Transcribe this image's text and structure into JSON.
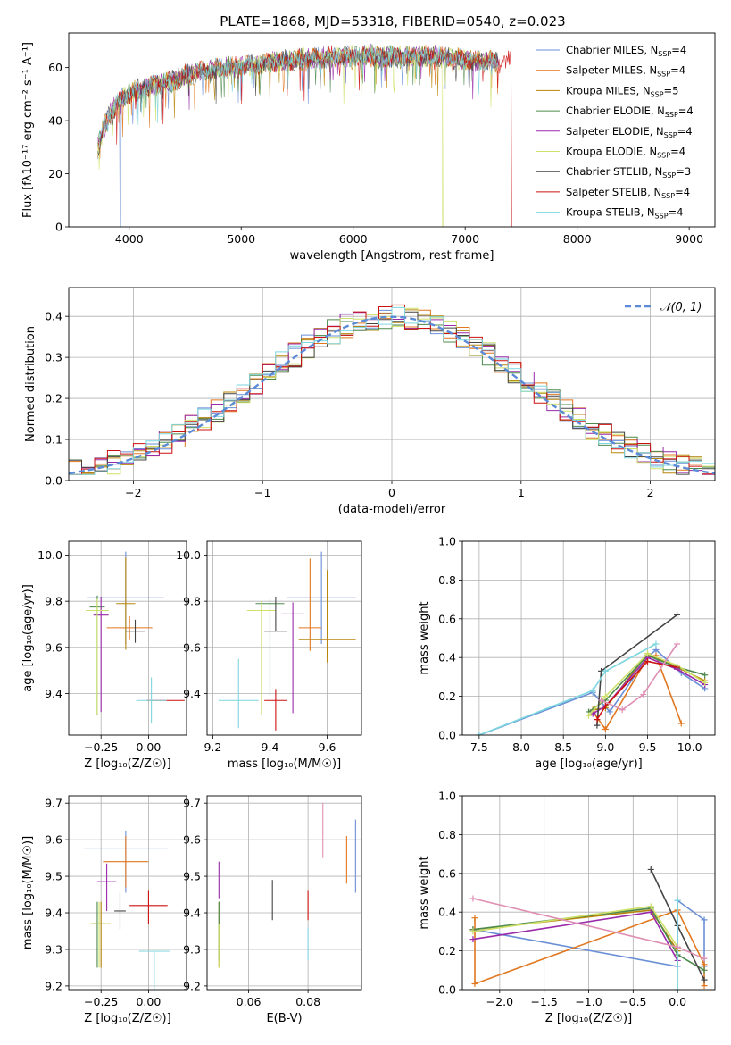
{
  "figure": {
    "title": "PLATE=1868, MJD=53318, FIBERID=0540, z=0.023"
  },
  "series": [
    {
      "name": "Chabrier MILES",
      "nssp": "4",
      "color": "#6a8fd6"
    },
    {
      "name": "Salpeter MILES",
      "nssp": "4",
      "color": "#e1771f"
    },
    {
      "name": "Kroupa MILES",
      "nssp": "5",
      "color": "#b8860b"
    },
    {
      "name": "Chabrier ELODIE",
      "nssp": "4",
      "color": "#4d8a4d"
    },
    {
      "name": "Salpeter ELODIE",
      "nssp": "4",
      "color": "#9a2aaa"
    },
    {
      "name": "Kroupa ELODIE",
      "nssp": "4",
      "color": "#cfe06a"
    },
    {
      "name": "Chabrier STELIB",
      "nssp": "3",
      "color": "#444444"
    },
    {
      "name": "Salpeter STELIB",
      "nssp": "4",
      "color": "#cc1111"
    },
    {
      "name": "Kroupa STELIB",
      "nssp": "4",
      "color": "#7ed6df"
    }
  ],
  "chart_data": [
    {
      "id": "spectrum",
      "type": "line",
      "xlabel": "wavelength [Angstrom, rest frame]",
      "ylabel": "Flux [fλ10⁻¹⁷ erg cm⁻² s⁻¹ A⁻¹]",
      "xlim": [
        3460,
        9230
      ],
      "ylim": [
        0,
        73
      ],
      "xticks": [
        4000,
        5000,
        6000,
        7000,
        8000,
        9000
      ],
      "yticks": [
        0,
        20,
        40,
        60
      ],
      "legend": "top-right",
      "continuum": {
        "x": [
          3720,
          3780,
          3850,
          3920,
          4000,
          4100,
          4200,
          4300,
          4400,
          4500,
          4700,
          4900,
          5100,
          5300,
          5500,
          5800,
          6100,
          6400,
          6700,
          7000,
          7300
        ],
        "y": [
          30,
          38,
          44,
          48,
          50,
          52,
          53,
          54,
          55,
          57,
          59,
          60,
          61,
          62,
          63,
          64,
          64.5,
          64,
          64.5,
          63,
          62
        ]
      },
      "dropouts": [
        {
          "series": "Chabrier MILES",
          "x": 3920
        },
        {
          "series": "Kroupa ELODIE",
          "x": 6800
        },
        {
          "series": "Salpeter STELIB",
          "x": 7420
        }
      ]
    },
    {
      "id": "residuals",
      "type": "line",
      "xlabel": "(data-model)/error",
      "ylabel": "Normed distribution",
      "xlim": [
        -2.5,
        2.5
      ],
      "ylim": [
        0,
        0.47
      ],
      "xticks": [
        -2,
        -1,
        0,
        1,
        2
      ],
      "yticks": [
        0.0,
        0.1,
        0.2,
        0.3,
        0.4
      ],
      "grid": true,
      "legend": "top-right",
      "reference": {
        "label": "𝒩(0, 1)",
        "mean": 0,
        "sigma": 1,
        "color": "#5b8ad6"
      }
    },
    {
      "id": "age-vs-Z",
      "type": "scatter",
      "xlabel": "Z [log₁₀(Z/Z☉)]",
      "ylabel": "age  [log₁₀(age/yr)]",
      "xlim": [
        -0.42,
        0.2
      ],
      "ylim": [
        9.22,
        10.06
      ],
      "xticks": [
        -0.25,
        0.0
      ],
      "yticks": [
        9.4,
        9.6,
        9.8,
        10.0
      ],
      "grid": true,
      "points": [
        {
          "series": "Chabrier MILES",
          "x": -0.12,
          "y": 9.815,
          "xerr": 0.2,
          "yerr_lo": 0.2,
          "yerr_hi": 0.2
        },
        {
          "series": "Salpeter MILES",
          "x": -0.1,
          "y": 9.685,
          "xerr": 0.12,
          "yerr_lo": 0.05,
          "yerr_hi": 0.05
        },
        {
          "series": "Kroupa MILES",
          "x": -0.12,
          "y": 9.79,
          "xerr": 0.05,
          "yerr_lo": 0.2,
          "yerr_hi": 0.2
        },
        {
          "series": "Chabrier ELODIE",
          "x": -0.27,
          "y": 9.775,
          "xerr": 0.04,
          "yerr_lo": 0.47,
          "yerr_hi": 0.05
        },
        {
          "series": "Salpeter ELODIE",
          "x": -0.25,
          "y": 9.74,
          "xerr": 0.04,
          "yerr_lo": 0.42,
          "yerr_hi": 0.08
        },
        {
          "series": "Kroupa ELODIE",
          "x": -0.27,
          "y": 9.76,
          "xerr": 0.06,
          "yerr_lo": 0.45,
          "yerr_hi": 0.05
        },
        {
          "series": "Chabrier STELIB",
          "x": -0.07,
          "y": 9.67,
          "xerr": 0.05,
          "yerr_lo": 0.05,
          "yerr_hi": 0.05
        },
        {
          "series": "Salpeter STELIB",
          "x": 0.09,
          "y": 9.37,
          "xerr": 0.1,
          "yerr_lo": 0.0,
          "yerr_hi": 0.0
        },
        {
          "series": "Kroupa STELIB",
          "x": 0.015,
          "y": 9.37,
          "xerr": 0.08,
          "yerr_lo": 0.1,
          "yerr_hi": 0.1
        }
      ]
    },
    {
      "id": "age-vs-mass",
      "type": "scatter",
      "xlabel": "mass [log₁₀(M/M☉)]",
      "ylabel": "",
      "xlim": [
        9.18,
        9.72
      ],
      "ylim": [
        9.22,
        10.06
      ],
      "xticks": [
        9.2,
        9.4,
        9.6
      ],
      "yticks": [
        9.4,
        9.6,
        9.8,
        10.0
      ],
      "grid": true,
      "points": [
        {
          "series": "Chabrier MILES",
          "x": 9.58,
          "y": 9.815,
          "xerr": 0.12,
          "yerr_lo": 0.2,
          "yerr_hi": 0.2
        },
        {
          "series": "Salpeter MILES",
          "x": 9.54,
          "y": 9.685,
          "xerr": 0.04,
          "yerr_lo": 0.1,
          "yerr_hi": 0.3
        },
        {
          "series": "Kroupa MILES",
          "x": 9.6,
          "y": 9.635,
          "xerr": 0.1,
          "yerr_lo": 0.1,
          "yerr_hi": 0.3
        },
        {
          "series": "Chabrier ELODIE",
          "x": 9.4,
          "y": 9.79,
          "xerr": 0.05,
          "yerr_lo": 0.4,
          "yerr_hi": 0.02
        },
        {
          "series": "Salpeter ELODIE",
          "x": 9.48,
          "y": 9.745,
          "xerr": 0.04,
          "yerr_lo": 0.43,
          "yerr_hi": 0.05
        },
        {
          "series": "Kroupa ELODIE",
          "x": 9.37,
          "y": 9.76,
          "xerr": 0.05,
          "yerr_lo": 0.45,
          "yerr_hi": 0.04
        },
        {
          "series": "Chabrier STELIB",
          "x": 9.42,
          "y": 9.67,
          "xerr": 0.04,
          "yerr_lo": 0.0,
          "yerr_hi": 0.15
        },
        {
          "series": "Salpeter STELIB",
          "x": 9.42,
          "y": 9.37,
          "xerr": 0.04,
          "yerr_lo": 0.13,
          "yerr_hi": 0.05
        },
        {
          "series": "Kroupa STELIB",
          "x": 9.29,
          "y": 9.37,
          "xerr": 0.07,
          "yerr_lo": 0.12,
          "yerr_hi": 0.18
        }
      ]
    },
    {
      "id": "weight-vs-age",
      "type": "line",
      "xlabel": "age  [log₁₀(age/yr)]",
      "ylabel": "mass weight",
      "xlim": [
        7.3,
        10.3
      ],
      "ylim": [
        0,
        1.0
      ],
      "xticks": [
        7.5,
        8.0,
        8.5,
        9.0,
        9.5,
        10.0
      ],
      "yticks": [
        0.0,
        0.2,
        0.4,
        0.6,
        0.8,
        1.0
      ],
      "grid": true,
      "lines": [
        {
          "series": "Chabrier MILES",
          "x": [
            7.5,
            8.85,
            9.05,
            9.5,
            9.6,
            9.9,
            10.18
          ],
          "y": [
            0.0,
            0.22,
            0.12,
            0.4,
            0.44,
            0.32,
            0.24
          ]
        },
        {
          "series": "Salpeter MILES",
          "x": [
            8.85,
            9.0,
            9.5,
            9.6,
            9.9
          ],
          "y": [
            0.12,
            0.03,
            0.4,
            0.41,
            0.06
          ]
        },
        {
          "series": "Kroupa MILES",
          "x": [
            8.85,
            9.0,
            9.5,
            9.85,
            10.18
          ],
          "y": [
            0.13,
            0.14,
            0.42,
            0.35,
            0.28
          ]
        },
        {
          "series": "Chabrier ELODIE",
          "x": [
            8.8,
            9.0,
            9.5,
            9.85,
            10.18
          ],
          "y": [
            0.12,
            0.18,
            0.41,
            0.35,
            0.31
          ]
        },
        {
          "series": "Salpeter ELODIE",
          "x": [
            8.85,
            9.0,
            9.5,
            9.85,
            10.18
          ],
          "y": [
            0.11,
            0.15,
            0.4,
            0.34,
            0.26
          ]
        },
        {
          "series": "Kroupa ELODIE",
          "x": [
            8.8,
            9.0,
            9.5,
            9.85,
            10.18
          ],
          "y": [
            0.1,
            0.2,
            0.42,
            0.36,
            0.27
          ]
        },
        {
          "series": "Chabrier STELIB",
          "x": [
            8.9,
            8.95,
            9.85
          ],
          "y": [
            0.05,
            0.33,
            0.62
          ]
        },
        {
          "series": "Salpeter STELIB",
          "x": [
            8.9,
            9.0,
            9.5,
            9.85
          ],
          "y": [
            0.08,
            0.15,
            0.38,
            0.35
          ]
        },
        {
          "series": "Kroupa STELIB",
          "x": [
            7.5,
            8.85,
            9.0,
            9.6
          ],
          "y": [
            0.0,
            0.23,
            0.33,
            0.47
          ]
        },
        {
          "series": "pink",
          "x": [
            8.95,
            9.2,
            9.45,
            9.85
          ],
          "y": [
            0.18,
            0.13,
            0.21,
            0.47
          ]
        }
      ]
    },
    {
      "id": "mass-vs-Z",
      "type": "scatter",
      "xlabel": "Z [log₁₀(Z/Z☉)]",
      "ylabel": "mass [log₁₀(M/M☉)]",
      "xlim": [
        -0.42,
        0.2
      ],
      "ylim": [
        9.19,
        9.72
      ],
      "xticks": [
        -0.25,
        0.0
      ],
      "yticks": [
        9.2,
        9.3,
        9.4,
        9.5,
        9.6,
        9.7
      ],
      "grid": true,
      "points": [
        {
          "series": "Chabrier MILES",
          "x": -0.12,
          "y": 9.575,
          "xerr": 0.22,
          "yerr_lo": 0.12,
          "yerr_hi": 0.05
        },
        {
          "series": "Salpeter MILES",
          "x": -0.12,
          "y": 9.54,
          "xerr": 0.12,
          "yerr_lo": 0.07,
          "yerr_hi": 0.07
        },
        {
          "series": "Kroupa MILES",
          "x": -0.25,
          "y": 9.37,
          "xerr": 0.05,
          "yerr_lo": 0.12,
          "yerr_hi": 0.06
        },
        {
          "series": "Chabrier ELODIE",
          "x": -0.27,
          "y": 9.37,
          "xerr": 0.03,
          "yerr_lo": 0.12,
          "yerr_hi": 0.06
        },
        {
          "series": "Salpeter ELODIE",
          "x": -0.22,
          "y": 9.485,
          "xerr": 0.05,
          "yerr_lo": 0.08,
          "yerr_hi": 0.05
        },
        {
          "series": "Kroupa ELODIE",
          "x": -0.26,
          "y": 9.37,
          "xerr": 0.05,
          "yerr_lo": 0.12,
          "yerr_hi": 0.06
        },
        {
          "series": "Chabrier STELIB",
          "x": -0.15,
          "y": 9.405,
          "xerr": 0.03,
          "yerr_lo": 0.05,
          "yerr_hi": 0.05
        },
        {
          "series": "Salpeter STELIB",
          "x": 0.0,
          "y": 9.42,
          "xerr": 0.1,
          "yerr_lo": 0.05,
          "yerr_hi": 0.04
        },
        {
          "series": "Kroupa STELIB",
          "x": 0.03,
          "y": 9.295,
          "xerr": 0.08,
          "yerr_lo": 0.12,
          "yerr_hi": 0.0
        }
      ]
    },
    {
      "id": "mass-vs-EBV",
      "type": "scatter",
      "xlabel": "E(B-V)",
      "ylabel": "",
      "xlim": [
        0.046,
        0.098
      ],
      "ylim": [
        9.19,
        9.72
      ],
      "xticks": [
        0.06,
        0.08
      ],
      "yticks": [
        9.2,
        9.3,
        9.4,
        9.5,
        9.6,
        9.7
      ],
      "grid": true,
      "points": [
        {
          "series": "Chabrier MILES",
          "x": 0.096,
          "y": 9.575,
          "xerr": 0.0,
          "yerr_lo": 0.12,
          "yerr_hi": 0.08
        },
        {
          "series": "Salpeter MILES",
          "x": 0.093,
          "y": 9.54,
          "xerr": 0.0,
          "yerr_lo": 0.06,
          "yerr_hi": 0.07
        },
        {
          "series": "Kroupa MILES",
          "x": 0.05,
          "y": 9.37,
          "xerr": 0.0,
          "yerr_lo": 0.12,
          "yerr_hi": 0.06
        },
        {
          "series": "Chabrier ELODIE",
          "x": 0.05,
          "y": 9.37,
          "xerr": 0.0,
          "yerr_lo": 0.1,
          "yerr_hi": 0.06
        },
        {
          "series": "Salpeter ELODIE",
          "x": 0.05,
          "y": 9.49,
          "xerr": 0.0,
          "yerr_lo": 0.05,
          "yerr_hi": 0.05
        },
        {
          "series": "Kroupa ELODIE",
          "x": 0.05,
          "y": 9.33,
          "xerr": 0.0,
          "yerr_lo": 0.08,
          "yerr_hi": 0.04
        },
        {
          "series": "Chabrier STELIB",
          "x": 0.068,
          "y": 9.43,
          "xerr": 0.0,
          "yerr_lo": 0.05,
          "yerr_hi": 0.06
        },
        {
          "series": "Salpeter STELIB",
          "x": 0.08,
          "y": 9.42,
          "xerr": 0.0,
          "yerr_lo": 0.04,
          "yerr_hi": 0.04
        },
        {
          "series": "Kroupa STELIB",
          "x": 0.08,
          "y": 9.33,
          "xerr": 0.0,
          "yerr_lo": 0.06,
          "yerr_hi": 0.03
        },
        {
          "series": "pink",
          "x": 0.085,
          "y": 9.6,
          "xerr": 0.0,
          "yerr_lo": 0.05,
          "yerr_hi": 0.1
        }
      ]
    },
    {
      "id": "weight-vs-Z",
      "type": "line",
      "xlabel": "Z [log₁₀(Z/Z☉)]",
      "ylabel": "mass weight",
      "xlim": [
        -2.42,
        0.42
      ],
      "ylim": [
        0,
        1.0
      ],
      "xticks": [
        -2.0,
        -1.5,
        -1.0,
        -0.5,
        0.0
      ],
      "yticks": [
        0.0,
        0.2,
        0.4,
        0.6,
        0.8,
        1.0
      ],
      "grid": true,
      "lines": [
        {
          "series": "Chabrier MILES",
          "x": [
            -2.3,
            0.0,
            0.0,
            0.3,
            0.3
          ],
          "y": [
            0.31,
            0.12,
            0.46,
            0.36,
            0.12
          ]
        },
        {
          "series": "Salpeter MILES",
          "x": [
            -2.28,
            -2.28,
            0.0,
            0.3,
            0.3
          ],
          "y": [
            0.37,
            0.03,
            0.41,
            0.13,
            0.02
          ]
        },
        {
          "series": "Kroupa MILES",
          "x": [
            -2.3,
            -0.3,
            0.0
          ],
          "y": [
            0.31,
            0.41,
            0.2
          ]
        },
        {
          "series": "Chabrier ELODIE",
          "x": [
            -2.3,
            -0.3,
            0.0,
            0.3
          ],
          "y": [
            0.31,
            0.42,
            0.18,
            0.1
          ]
        },
        {
          "series": "Salpeter ELODIE",
          "x": [
            -2.3,
            -0.3,
            0.0
          ],
          "y": [
            0.26,
            0.4,
            0.15
          ]
        },
        {
          "series": "Kroupa ELODIE",
          "x": [
            -2.3,
            -0.3,
            0.0
          ],
          "y": [
            0.3,
            0.43,
            0.22
          ]
        },
        {
          "series": "Chabrier STELIB",
          "x": [
            -0.3,
            0.0,
            0.3
          ],
          "y": [
            0.62,
            0.33,
            0.05
          ]
        },
        {
          "series": "Kroupa STELIB",
          "x": [
            0.0,
            0.0
          ],
          "y": [
            0.46,
            0.0
          ]
        },
        {
          "series": "pink",
          "x": [
            -2.3,
            0.0,
            0.3
          ],
          "y": [
            0.47,
            0.22,
            0.16
          ]
        }
      ]
    }
  ]
}
